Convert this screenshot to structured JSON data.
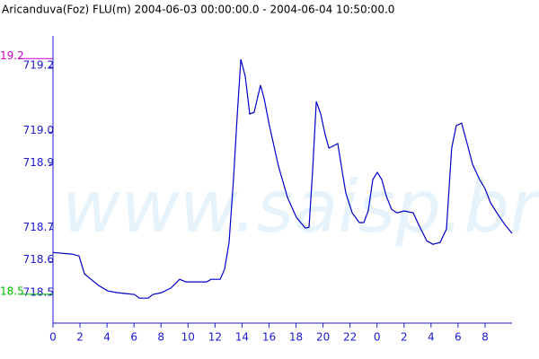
{
  "chart_data": {
    "type": "line",
    "title": "Aricanduva(Foz) FLU(m) 2004-06-03 00:00:00.0 - 2004-06-04 10:50:00.0",
    "watermark": "www.saisp.br",
    "x": [
      0,
      1.4,
      1.93,
      2.33,
      2.73,
      3.39,
      4.06,
      4.72,
      5.39,
      6.05,
      6.39,
      7.05,
      7.39,
      8.05,
      8.72,
      9.38,
      9.85,
      10.71,
      11.38,
      11.71,
      12.38,
      12.71,
      13.04,
      13.37,
      13.64,
      13.91,
      14.24,
      14.57,
      14.9,
      15.37,
      15.64,
      16.03,
      16.7,
      17.37,
      18.03,
      18.7,
      18.96,
      19.23,
      19.5,
      19.83,
      20.16,
      20.43,
      20.82,
      21.09,
      21.36,
      21.69,
      22.16,
      22.69,
      23.02,
      23.35,
      23.69,
      24.02,
      24.35,
      24.68,
      25.08,
      25.48,
      26.01,
      26.68,
      27.08,
      27.68,
      28.14,
      28.67,
      29.14,
      29.53,
      29.87,
      30.27,
      30.67,
      31.07,
      31.6,
      32.0,
      32.4,
      33.0,
      33.47,
      34.0
    ],
    "series": [
      {
        "name": "FLU(m)",
        "color": "#0000cc",
        "values": [
          718.629,
          718.624,
          718.618,
          718.563,
          718.549,
          718.527,
          718.51,
          718.505,
          718.502,
          718.499,
          718.488,
          718.488,
          718.499,
          718.505,
          718.519,
          718.546,
          718.538,
          718.538,
          718.538,
          718.546,
          718.546,
          718.577,
          718.66,
          718.854,
          719.048,
          719.225,
          719.172,
          719.056,
          719.061,
          719.145,
          719.103,
          719.02,
          718.895,
          718.798,
          718.737,
          718.704,
          718.707,
          718.881,
          719.095,
          719.056,
          718.992,
          718.951,
          718.959,
          718.965,
          718.895,
          718.812,
          718.751,
          718.721,
          718.721,
          718.757,
          718.854,
          718.876,
          718.854,
          718.804,
          718.762,
          718.751,
          718.757,
          718.751,
          718.715,
          718.665,
          718.654,
          718.66,
          718.701,
          718.951,
          719.02,
          719.028,
          718.965,
          718.901,
          718.854,
          718.826,
          718.782,
          718.743,
          718.715,
          718.688
        ]
      }
    ],
    "xlim": [
      0,
      34
    ],
    "xticks": [
      0,
      2,
      4,
      6,
      8,
      10,
      12,
      14,
      16,
      18,
      20,
      22,
      {
        "value": 24,
        "label": "0"
      },
      {
        "value": 26,
        "label": "2"
      },
      {
        "value": 28,
        "label": "4"
      },
      {
        "value": 30,
        "label": "6"
      },
      {
        "value": 32,
        "label": "8"
      }
    ],
    "ylim": [
      718.411,
      719.297
    ],
    "yticks": [
      718.5,
      718.6,
      718.7,
      718.9,
      {
        "value": 719,
        "label": "719.0"
      },
      719.2
    ],
    "reference_lines": [
      {
        "label": "19.2",
        "value": 719.227,
        "color": "#cc00cc"
      },
      {
        "label": "18.5",
        "value": 718.5,
        "color": "#00bb00"
      }
    ]
  }
}
